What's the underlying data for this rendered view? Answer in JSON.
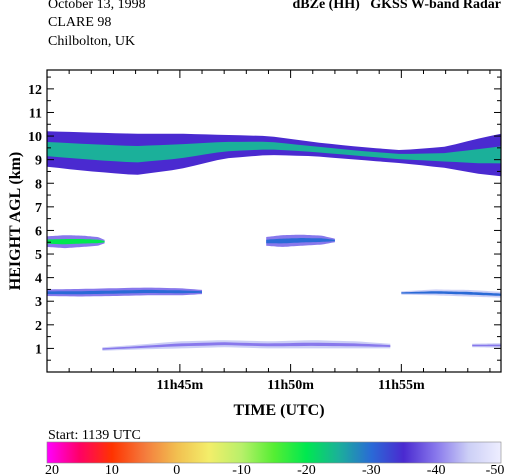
{
  "header": {
    "date": "October 13, 1998",
    "campaign": "CLARE 98",
    "site": "Chilbolton, UK",
    "product": "dBZe (HH)",
    "instrument": "GKSS W-band Radar"
  },
  "start_label": "Start: 1139 UTC",
  "colors": {
    "scale": [
      "#ff00ff",
      "#ff0066",
      "#ff3300",
      "#f47a3c",
      "#f2bf50",
      "#f3ee6a",
      "#b8f06a",
      "#55ee33",
      "#00e850",
      "#1bb09a",
      "#2a6ad6",
      "#4a2ad0",
      "#8878ec",
      "#cccff6",
      "#eeeeff"
    ]
  },
  "chart_data": {
    "type": "heatmap",
    "title": "dBZe (HH)   GKSS  W-band Radar",
    "xlabel": "TIME (UTC)",
    "ylabel": "HEIGHT AGL (km)",
    "x_range_min": [
      39.0,
      59.5
    ],
    "xticks": [
      45,
      50,
      55
    ],
    "xtick_labels": [
      "11h45m",
      "11h50m",
      "11h55m"
    ],
    "ylim": [
      0,
      12.8
    ],
    "yticks": [
      1,
      2,
      3,
      4,
      5,
      6,
      7,
      8,
      9,
      10,
      11,
      12
    ],
    "ytick_labels": [
      "1",
      "2",
      "3",
      "4",
      "5",
      "6",
      "7",
      "8",
      "9",
      "10",
      "11",
      "12"
    ],
    "colorbar": {
      "units": "dBZe",
      "ticks": [
        20,
        10,
        0,
        -10,
        -20,
        -30,
        -40,
        -50
      ],
      "tick_labels": [
        "20",
        "10",
        "0",
        "-10",
        "-20",
        "-30",
        "-40",
        "-50"
      ]
    },
    "layers": [
      {
        "name": "upper",
        "t": [
          39.0,
          41.0,
          43.0,
          45.0,
          47.0,
          49.0,
          51.0,
          53.0,
          55.0,
          57.0,
          58.5,
          59.5
        ],
        "top": [
          10.2,
          10.15,
          10.1,
          10.1,
          10.05,
          10.0,
          9.75,
          9.55,
          9.4,
          9.55,
          9.9,
          10.1
        ],
        "bottom": [
          8.7,
          8.5,
          8.35,
          8.6,
          9.05,
          9.2,
          9.15,
          9.0,
          8.85,
          8.65,
          8.4,
          8.3
        ],
        "core_dbz": -25,
        "edge_dbz": -35
      },
      {
        "name": "mid",
        "t": [
          39.0,
          39.8,
          40.6,
          41.3,
          41.6
        ],
        "top": [
          5.75,
          5.8,
          5.78,
          5.72,
          5.6
        ],
        "bottom": [
          5.3,
          5.25,
          5.3,
          5.35,
          5.45
        ],
        "core_dbz": -20,
        "edge_dbz": -40
      },
      {
        "name": "mid-2",
        "t": [
          48.9,
          49.6,
          50.5,
          51.4,
          52.0
        ],
        "top": [
          5.72,
          5.8,
          5.82,
          5.78,
          5.65
        ],
        "bottom": [
          5.35,
          5.3,
          5.35,
          5.4,
          5.5
        ],
        "core_dbz": -28,
        "edge_dbz": -42
      },
      {
        "name": "low",
        "t": [
          39.0,
          40.5,
          42.0,
          43.5,
          45.0,
          46.0
        ],
        "top": [
          3.5,
          3.52,
          3.55,
          3.58,
          3.55,
          3.48
        ],
        "bottom": [
          3.22,
          3.2,
          3.22,
          3.25,
          3.25,
          3.3
        ],
        "core_dbz": -30,
        "edge_dbz": -42
      },
      {
        "name": "low-2",
        "t": [
          55.0,
          56.5,
          58.0,
          59.5
        ],
        "top": [
          3.42,
          3.5,
          3.48,
          3.4
        ],
        "bottom": [
          3.28,
          3.25,
          3.2,
          3.15
        ],
        "core_dbz": -32,
        "edge_dbz": -44
      },
      {
        "name": "base",
        "t": [
          41.5,
          43.0,
          45.0,
          47.0,
          49.0,
          51.0,
          53.0,
          54.5
        ],
        "top": [
          1.05,
          1.15,
          1.3,
          1.35,
          1.3,
          1.35,
          1.3,
          1.2
        ],
        "bottom": [
          0.9,
          0.95,
          1.0,
          1.05,
          1.0,
          1.0,
          1.0,
          1.0
        ],
        "core_dbz": -38,
        "edge_dbz": -45
      },
      {
        "name": "base-2",
        "t": [
          58.2,
          59.5
        ],
        "top": [
          1.2,
          1.22
        ],
        "bottom": [
          1.05,
          1.03
        ],
        "core_dbz": -40,
        "edge_dbz": -45
      }
    ]
  }
}
